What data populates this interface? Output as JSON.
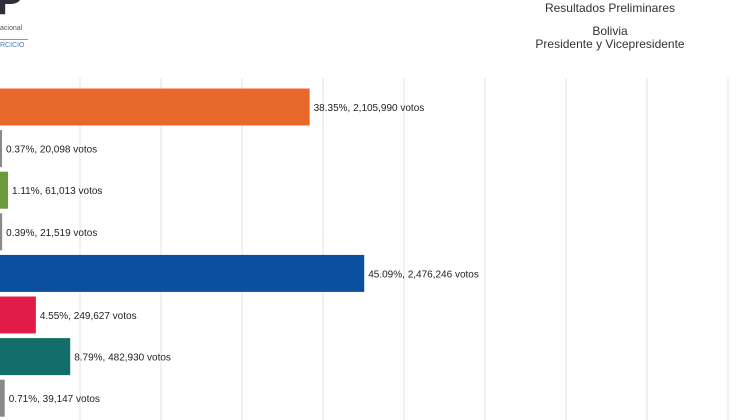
{
  "header": {
    "logo_letter": "P",
    "logo_line1": "acional",
    "logo_line2": "RCICIO",
    "title": "Resultados Preliminares",
    "country": "Bolivia",
    "office": "Presidente y Vicepresidente"
  },
  "chart_data": {
    "type": "bar",
    "orientation": "horizontal",
    "grid": true,
    "series": [
      {
        "percent": 38.35,
        "votes": 2105990,
        "label": "38.35%,  2,105,990 votos",
        "color": "#e8672a"
      },
      {
        "percent": 0.37,
        "votes": 20098,
        "label": "0.37%,  20,098 votos",
        "color": "#8a8a8a"
      },
      {
        "percent": 1.11,
        "votes": 61013,
        "label": "1.11%,  61,013 votos",
        "color": "#6a9a3a"
      },
      {
        "percent": 0.39,
        "votes": 21519,
        "label": "0.39%,  21,519 votos",
        "color": "#8a8a8a"
      },
      {
        "percent": 45.09,
        "votes": 2476246,
        "label": "45.09%,  2,476,246 votos",
        "color": "#0a4fa0"
      },
      {
        "percent": 4.55,
        "votes": 249627,
        "label": "4.55%,  249,627 votos",
        "color": "#e01c47"
      },
      {
        "percent": 8.79,
        "votes": 482930,
        "label": "8.79%,  482,930 votos",
        "color": "#136d68"
      },
      {
        "percent": 0.71,
        "votes": 39147,
        "label": "0.71%,  39,147 votos",
        "color": "#8a8a8a"
      }
    ]
  }
}
